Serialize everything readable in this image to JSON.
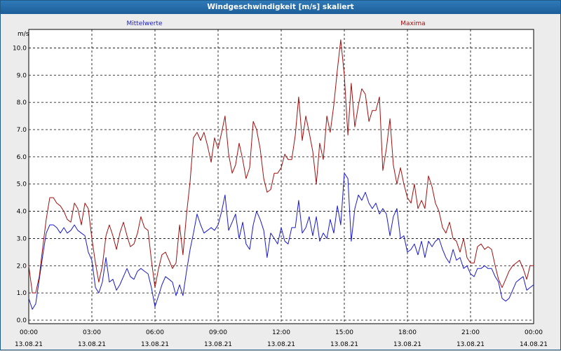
{
  "window": {
    "title": "Windgeschwindigkeit [m/s] skaliert"
  },
  "colors": {
    "mean": "#1a1acc",
    "max": "#a01010",
    "grid": "#000000",
    "plot_bg": "#ffffff",
    "frame_bg": "#ececec"
  },
  "chart_data": {
    "type": "line",
    "ylabel": "m/s",
    "ylim": [
      0.0,
      10.5
    ],
    "xlim": [
      0,
      24
    ],
    "grid": true,
    "grid_style": "dashed",
    "legend_placement": "top",
    "y_ticks": [
      "0.0",
      "1.0",
      "2.0",
      "3.0",
      "4.0",
      "5.0",
      "6.0",
      "7.0",
      "8.0",
      "9.0",
      "10.0"
    ],
    "x_ticks": [
      {
        "time": "00:00",
        "date": "13.08.21"
      },
      {
        "time": "03:00",
        "date": "13.08.21"
      },
      {
        "time": "06:00",
        "date": "13.08.21"
      },
      {
        "time": "09:00",
        "date": "13.08.21"
      },
      {
        "time": "12:00",
        "date": "13.08.21"
      },
      {
        "time": "15:00",
        "date": "13.08.21"
      },
      {
        "time": "18:00",
        "date": "13.08.21"
      },
      {
        "time": "21:00",
        "date": "13.08.21"
      },
      {
        "time": "00:00",
        "date": "14.08.21"
      }
    ],
    "series": [
      {
        "name": "Mittelwerte",
        "color": "#1a1acc",
        "points": [
          [
            0.0,
            0.8
          ],
          [
            0.17,
            0.4
          ],
          [
            0.33,
            0.6
          ],
          [
            0.5,
            1.5
          ],
          [
            0.67,
            2.4
          ],
          [
            0.83,
            3.2
          ],
          [
            1.0,
            3.5
          ],
          [
            1.17,
            3.5
          ],
          [
            1.33,
            3.4
          ],
          [
            1.5,
            3.2
          ],
          [
            1.67,
            3.4
          ],
          [
            1.83,
            3.2
          ],
          [
            2.0,
            3.3
          ],
          [
            2.17,
            3.5
          ],
          [
            2.33,
            3.3
          ],
          [
            2.5,
            3.2
          ],
          [
            2.67,
            3.1
          ],
          [
            2.83,
            2.5
          ],
          [
            3.0,
            2.2
          ],
          [
            3.17,
            1.2
          ],
          [
            3.33,
            1.0
          ],
          [
            3.5,
            1.4
          ],
          [
            3.67,
            2.3
          ],
          [
            3.83,
            1.4
          ],
          [
            4.0,
            1.5
          ],
          [
            4.17,
            1.1
          ],
          [
            4.33,
            1.3
          ],
          [
            4.5,
            1.6
          ],
          [
            4.67,
            1.9
          ],
          [
            4.83,
            1.6
          ],
          [
            5.0,
            1.5
          ],
          [
            5.17,
            1.8
          ],
          [
            5.33,
            1.9
          ],
          [
            5.5,
            1.8
          ],
          [
            5.67,
            1.7
          ],
          [
            5.83,
            1.2
          ],
          [
            6.0,
            0.5
          ],
          [
            6.17,
            0.9
          ],
          [
            6.33,
            1.3
          ],
          [
            6.5,
            1.6
          ],
          [
            6.67,
            1.5
          ],
          [
            6.83,
            1.4
          ],
          [
            7.0,
            0.9
          ],
          [
            7.17,
            1.3
          ],
          [
            7.33,
            0.9
          ],
          [
            7.5,
            1.8
          ],
          [
            7.67,
            2.6
          ],
          [
            7.83,
            3.2
          ],
          [
            8.0,
            3.9
          ],
          [
            8.17,
            3.5
          ],
          [
            8.33,
            3.2
          ],
          [
            8.5,
            3.3
          ],
          [
            8.67,
            3.4
          ],
          [
            8.83,
            3.3
          ],
          [
            9.0,
            3.5
          ],
          [
            9.17,
            4.0
          ],
          [
            9.33,
            4.6
          ],
          [
            9.5,
            3.3
          ],
          [
            9.67,
            3.6
          ],
          [
            9.83,
            3.9
          ],
          [
            10.0,
            3.0
          ],
          [
            10.17,
            3.6
          ],
          [
            10.33,
            2.8
          ],
          [
            10.5,
            2.6
          ],
          [
            10.67,
            3.5
          ],
          [
            10.83,
            4.0
          ],
          [
            11.0,
            3.7
          ],
          [
            11.17,
            3.3
          ],
          [
            11.33,
            2.3
          ],
          [
            11.5,
            3.2
          ],
          [
            11.67,
            3.0
          ],
          [
            11.83,
            2.8
          ],
          [
            12.0,
            3.4
          ],
          [
            12.17,
            2.9
          ],
          [
            12.33,
            2.8
          ],
          [
            12.5,
            3.4
          ],
          [
            12.67,
            3.4
          ],
          [
            12.83,
            4.4
          ],
          [
            13.0,
            3.2
          ],
          [
            13.17,
            3.4
          ],
          [
            13.33,
            3.8
          ],
          [
            13.5,
            3.1
          ],
          [
            13.67,
            3.8
          ],
          [
            13.83,
            2.9
          ],
          [
            14.0,
            3.2
          ],
          [
            14.17,
            3.0
          ],
          [
            14.33,
            3.7
          ],
          [
            14.5,
            3.2
          ],
          [
            14.67,
            4.2
          ],
          [
            14.83,
            3.5
          ],
          [
            15.0,
            5.4
          ],
          [
            15.17,
            5.2
          ],
          [
            15.33,
            2.9
          ],
          [
            15.5,
            4.1
          ],
          [
            15.67,
            4.6
          ],
          [
            15.83,
            4.4
          ],
          [
            16.0,
            4.7
          ],
          [
            16.17,
            4.3
          ],
          [
            16.33,
            4.1
          ],
          [
            16.5,
            4.3
          ],
          [
            16.67,
            3.9
          ],
          [
            16.83,
            4.1
          ],
          [
            17.0,
            3.9
          ],
          [
            17.17,
            3.1
          ],
          [
            17.33,
            3.8
          ],
          [
            17.5,
            4.1
          ],
          [
            17.67,
            3.0
          ],
          [
            17.83,
            3.1
          ],
          [
            18.0,
            2.5
          ],
          [
            18.17,
            2.6
          ],
          [
            18.33,
            2.8
          ],
          [
            18.5,
            2.4
          ],
          [
            18.67,
            2.9
          ],
          [
            18.83,
            2.3
          ],
          [
            19.0,
            2.9
          ],
          [
            19.17,
            2.7
          ],
          [
            19.33,
            2.9
          ],
          [
            19.5,
            3.0
          ],
          [
            19.67,
            2.6
          ],
          [
            19.83,
            2.3
          ],
          [
            20.0,
            2.1
          ],
          [
            20.17,
            2.6
          ],
          [
            20.33,
            2.2
          ],
          [
            20.5,
            2.3
          ],
          [
            20.67,
            1.9
          ],
          [
            20.83,
            2.0
          ],
          [
            21.0,
            1.7
          ],
          [
            21.17,
            1.6
          ],
          [
            21.33,
            1.9
          ],
          [
            21.5,
            1.9
          ],
          [
            21.67,
            2.0
          ],
          [
            21.83,
            1.9
          ],
          [
            22.0,
            1.9
          ],
          [
            22.17,
            1.6
          ],
          [
            22.33,
            1.4
          ],
          [
            22.5,
            0.8
          ],
          [
            22.67,
            0.7
          ],
          [
            22.83,
            0.8
          ],
          [
            23.0,
            1.1
          ],
          [
            23.17,
            1.4
          ],
          [
            23.33,
            1.5
          ],
          [
            23.5,
            1.6
          ],
          [
            23.67,
            1.1
          ],
          [
            23.83,
            1.2
          ],
          [
            24.0,
            1.3
          ]
        ]
      },
      {
        "name": "Maxima",
        "color": "#a01010",
        "points": [
          [
            0.0,
            2.0
          ],
          [
            0.17,
            1.0
          ],
          [
            0.33,
            1.0
          ],
          [
            0.5,
            1.6
          ],
          [
            0.67,
            2.7
          ],
          [
            0.83,
            3.7
          ],
          [
            1.0,
            4.5
          ],
          [
            1.17,
            4.5
          ],
          [
            1.33,
            4.3
          ],
          [
            1.5,
            4.2
          ],
          [
            1.67,
            4.0
          ],
          [
            1.83,
            3.7
          ],
          [
            2.0,
            3.6
          ],
          [
            2.17,
            4.3
          ],
          [
            2.33,
            4.1
          ],
          [
            2.5,
            3.5
          ],
          [
            2.67,
            4.3
          ],
          [
            2.83,
            4.1
          ],
          [
            3.0,
            3.0
          ],
          [
            3.17,
            2.1
          ],
          [
            3.33,
            1.4
          ],
          [
            3.5,
            2.0
          ],
          [
            3.67,
            3.1
          ],
          [
            3.83,
            3.5
          ],
          [
            4.0,
            3.1
          ],
          [
            4.17,
            2.6
          ],
          [
            4.33,
            3.2
          ],
          [
            4.5,
            3.6
          ],
          [
            4.67,
            3.1
          ],
          [
            4.83,
            2.7
          ],
          [
            5.0,
            2.8
          ],
          [
            5.17,
            3.2
          ],
          [
            5.33,
            3.8
          ],
          [
            5.5,
            3.4
          ],
          [
            5.67,
            3.3
          ],
          [
            5.83,
            2.2
          ],
          [
            6.0,
            1.2
          ],
          [
            6.17,
            1.9
          ],
          [
            6.33,
            2.4
          ],
          [
            6.5,
            2.5
          ],
          [
            6.67,
            2.2
          ],
          [
            6.83,
            1.9
          ],
          [
            7.0,
            2.1
          ],
          [
            7.17,
            3.5
          ],
          [
            7.33,
            2.4
          ],
          [
            7.5,
            3.9
          ],
          [
            7.67,
            5.1
          ],
          [
            7.83,
            6.7
          ],
          [
            8.0,
            6.9
          ],
          [
            8.17,
            6.6
          ],
          [
            8.33,
            6.9
          ],
          [
            8.5,
            6.4
          ],
          [
            8.67,
            5.8
          ],
          [
            8.83,
            6.7
          ],
          [
            9.0,
            6.3
          ],
          [
            9.17,
            6.9
          ],
          [
            9.33,
            7.5
          ],
          [
            9.5,
            6.1
          ],
          [
            9.67,
            5.4
          ],
          [
            9.83,
            5.7
          ],
          [
            10.0,
            6.5
          ],
          [
            10.17,
            5.9
          ],
          [
            10.33,
            5.2
          ],
          [
            10.5,
            5.6
          ],
          [
            10.67,
            7.3
          ],
          [
            10.83,
            7.0
          ],
          [
            11.0,
            6.3
          ],
          [
            11.17,
            5.2
          ],
          [
            11.33,
            4.7
          ],
          [
            11.5,
            4.8
          ],
          [
            11.67,
            5.4
          ],
          [
            11.83,
            5.4
          ],
          [
            12.0,
            5.6
          ],
          [
            12.17,
            6.1
          ],
          [
            12.33,
            5.9
          ],
          [
            12.5,
            5.9
          ],
          [
            12.67,
            6.8
          ],
          [
            12.83,
            8.2
          ],
          [
            13.0,
            6.6
          ],
          [
            13.17,
            7.5
          ],
          [
            13.33,
            6.9
          ],
          [
            13.5,
            6.2
          ],
          [
            13.67,
            5.0
          ],
          [
            13.83,
            6.5
          ],
          [
            14.0,
            5.9
          ],
          [
            14.17,
            7.5
          ],
          [
            14.33,
            6.9
          ],
          [
            14.5,
            7.9
          ],
          [
            14.67,
            9.2
          ],
          [
            14.83,
            10.3
          ],
          [
            15.0,
            9.0
          ],
          [
            15.17,
            6.8
          ],
          [
            15.33,
            8.7
          ],
          [
            15.5,
            7.1
          ],
          [
            15.67,
            7.9
          ],
          [
            15.83,
            8.5
          ],
          [
            16.0,
            8.3
          ],
          [
            16.17,
            7.3
          ],
          [
            16.33,
            7.7
          ],
          [
            16.5,
            7.7
          ],
          [
            16.67,
            8.2
          ],
          [
            16.83,
            5.5
          ],
          [
            17.0,
            6.3
          ],
          [
            17.17,
            7.4
          ],
          [
            17.33,
            5.7
          ],
          [
            17.5,
            5.0
          ],
          [
            17.67,
            5.6
          ],
          [
            17.83,
            5.0
          ],
          [
            18.0,
            4.5
          ],
          [
            18.17,
            4.3
          ],
          [
            18.33,
            5.0
          ],
          [
            18.5,
            4.1
          ],
          [
            18.67,
            4.4
          ],
          [
            18.83,
            4.1
          ],
          [
            19.0,
            5.3
          ],
          [
            19.17,
            4.9
          ],
          [
            19.33,
            4.3
          ],
          [
            19.5,
            4.0
          ],
          [
            19.67,
            3.4
          ],
          [
            19.83,
            3.2
          ],
          [
            20.0,
            3.6
          ],
          [
            20.17,
            3.0
          ],
          [
            20.33,
            2.9
          ],
          [
            20.5,
            2.5
          ],
          [
            20.67,
            3.0
          ],
          [
            20.83,
            2.3
          ],
          [
            21.0,
            2.1
          ],
          [
            21.17,
            2.1
          ],
          [
            21.33,
            2.7
          ],
          [
            21.5,
            2.8
          ],
          [
            21.67,
            2.6
          ],
          [
            21.83,
            2.7
          ],
          [
            22.0,
            2.6
          ],
          [
            22.17,
            2.0
          ],
          [
            22.33,
            1.5
          ],
          [
            22.5,
            1.2
          ],
          [
            22.67,
            1.5
          ],
          [
            22.83,
            1.8
          ],
          [
            23.0,
            2.0
          ],
          [
            23.17,
            2.1
          ],
          [
            23.33,
            2.2
          ],
          [
            23.5,
            1.9
          ],
          [
            23.67,
            1.5
          ],
          [
            23.83,
            2.0
          ],
          [
            24.0,
            2.0
          ]
        ]
      }
    ]
  }
}
